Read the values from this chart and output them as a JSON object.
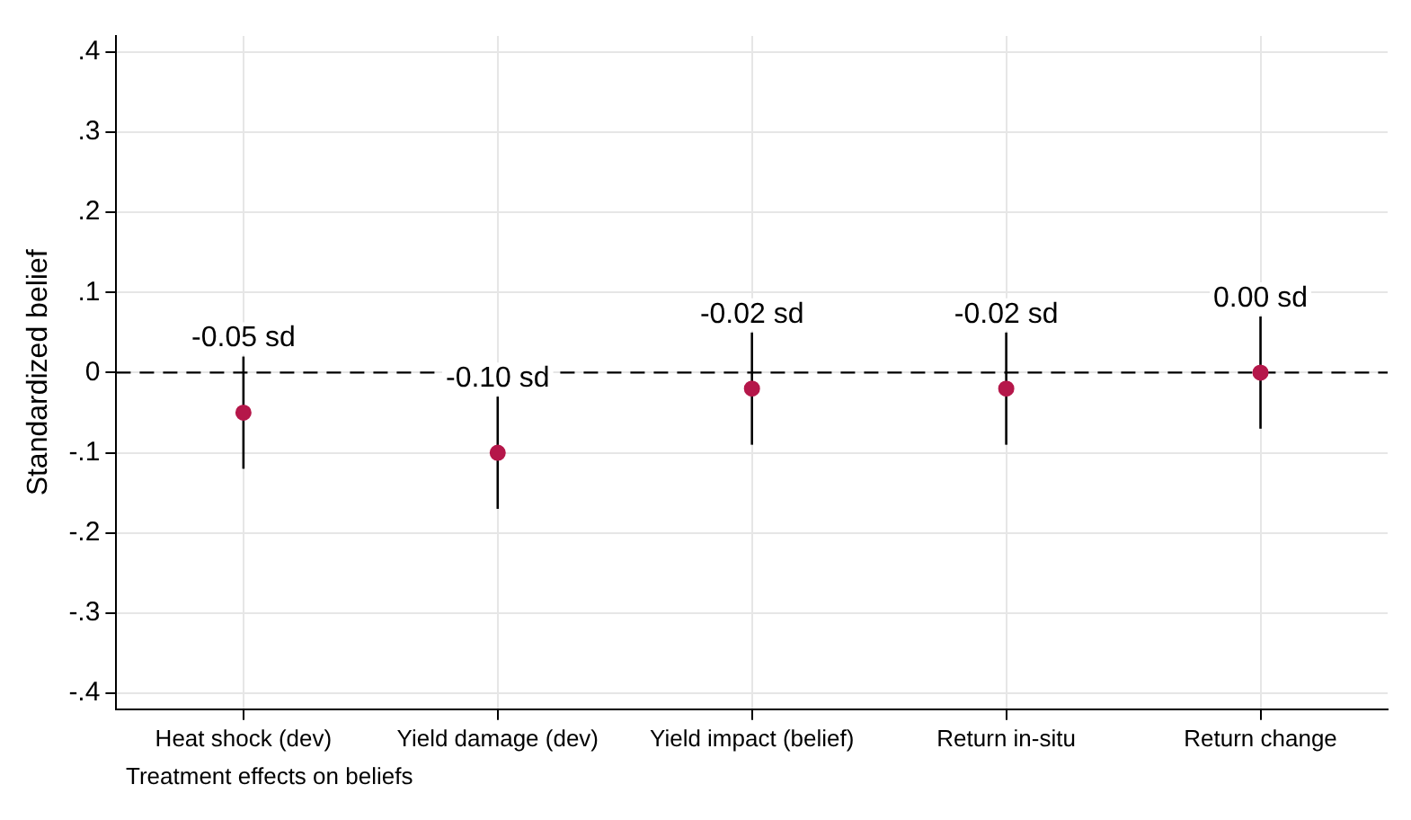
{
  "chart_data": {
    "type": "scatter",
    "ylabel": "Standardized belief",
    "xlabel": "Treatment effects on beliefs",
    "categories": [
      "Heat shock (dev)",
      "Yield damage (dev)",
      "Yield impact (belief)",
      "Return in-situ",
      "Return change"
    ],
    "values": [
      -0.05,
      -0.1,
      -0.02,
      -0.02,
      0.0
    ],
    "errors": [
      [
        -0.12,
        0.02
      ],
      [
        -0.17,
        -0.03
      ],
      [
        -0.09,
        0.05
      ],
      [
        -0.09,
        0.05
      ],
      [
        -0.07,
        0.07
      ]
    ],
    "value_labels": [
      "-0.05 sd",
      "-0.10 sd",
      "-0.02 sd",
      "-0.02 sd",
      "0.00 sd"
    ],
    "color": "#b5174a",
    "marker": "circle",
    "ylim": [
      -0.42,
      0.42
    ],
    "yticks": [
      {
        "value": -0.4,
        "label": "-.4"
      },
      {
        "value": -0.3,
        "label": "-.3"
      },
      {
        "value": -0.2,
        "label": "-.2"
      },
      {
        "value": -0.1,
        "label": "-.1"
      },
      0,
      {
        "value": 0.1,
        "label": ".1"
      },
      {
        "value": 0.2,
        "label": ".2"
      },
      {
        "value": 0.3,
        "label": ".3"
      },
      {
        "value": 0.4,
        "label": ".4"
      }
    ],
    "grid": true,
    "ref_lines": [
      {
        "axis": "y",
        "value": 0,
        "line_style": "dashed",
        "color": "#000000"
      }
    ]
  }
}
